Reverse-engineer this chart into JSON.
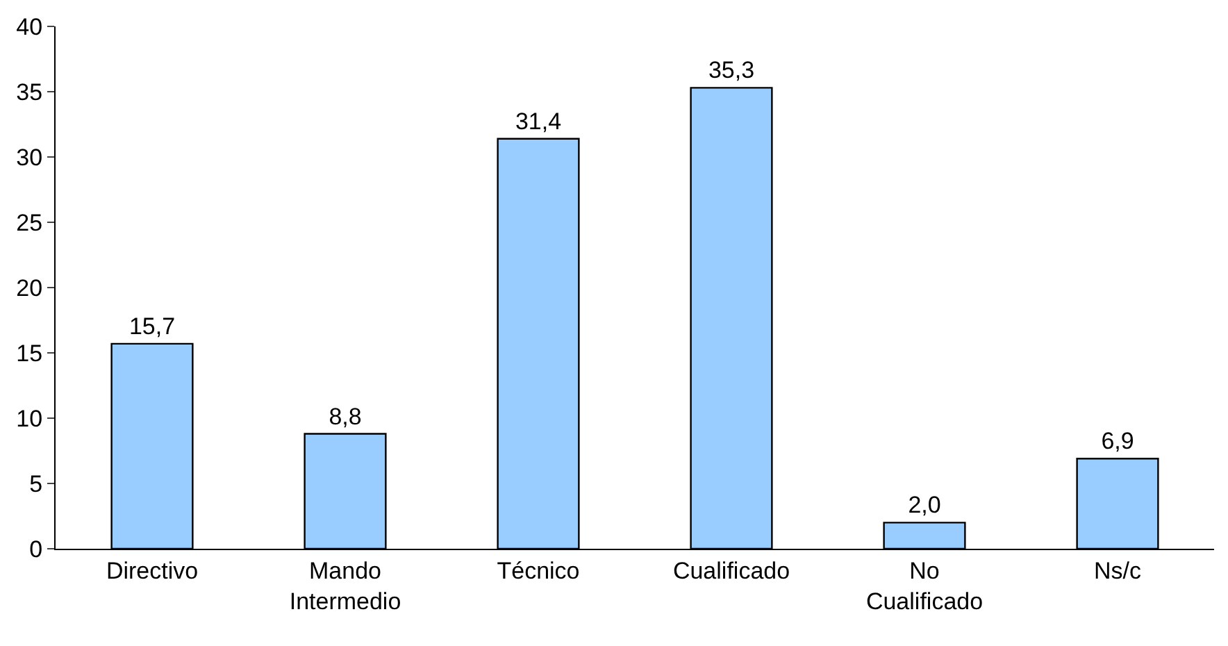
{
  "chart_data": {
    "type": "bar",
    "categories": [
      "Directivo",
      "Mando Intermedio",
      "Técnico",
      "Cualificado",
      "No Cualificado",
      "Ns/c"
    ],
    "values": [
      15.7,
      8.8,
      31.4,
      35.3,
      2.0,
      6.9
    ],
    "value_labels": [
      "15,7",
      "8,8",
      "31,4",
      "35,3",
      "2,0",
      "6,9"
    ],
    "color": "#99ccff",
    "ylim": [
      0,
      40
    ],
    "yticks": [
      0,
      5,
      10,
      15,
      20,
      25,
      30,
      35,
      40
    ]
  }
}
